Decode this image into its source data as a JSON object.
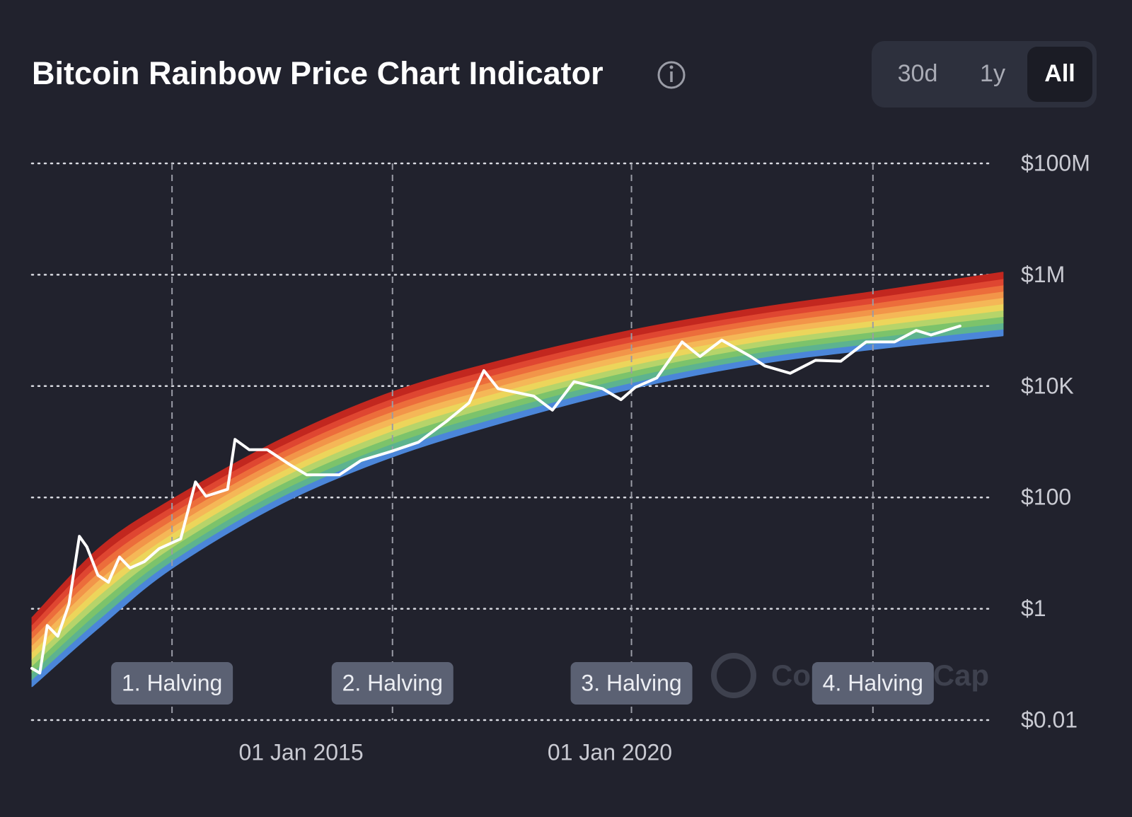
{
  "chart_data": {
    "type": "line",
    "title": "Bitcoin Rainbow Price Chart Indicator",
    "buttons": [
      "30d",
      "1y",
      "All"
    ],
    "active_button": 2,
    "watermark": "CoinMarketCap",
    "log_scale": true,
    "grid": true,
    "color": "#ffffff",
    "xlim": [
      2010.64,
      2026.37
    ],
    "xticks": [
      {
        "value": 2015,
        "label": "01 Jan 2015"
      },
      {
        "value": 2020,
        "label": "01 Jan 2020"
      }
    ],
    "ylim": [
      0.01,
      100000000
    ],
    "yticks": [
      {
        "value": 0.01,
        "label": "$0.01"
      },
      {
        "value": 1,
        "label": "$1"
      },
      {
        "value": 100,
        "label": "$100"
      },
      {
        "value": 10000,
        "label": "$10K"
      },
      {
        "value": 1000000,
        "label": "$1M"
      },
      {
        "value": 100000000,
        "label": "$100M"
      }
    ],
    "x": [
      2010.64,
      2010.77,
      2010.89,
      2011.06,
      2011.24,
      2011.41,
      2011.53,
      2011.71,
      2011.88,
      2012.06,
      2012.23,
      2012.46,
      2012.7,
      2013.05,
      2013.29,
      2013.46,
      2013.81,
      2013.93,
      2014.16,
      2014.45,
      2014.8,
      2015.09,
      2015.62,
      2015.97,
      2016.44,
      2016.9,
      2017.37,
      2017.72,
      2017.96,
      2018.19,
      2018.77,
      2019.07,
      2019.42,
      2019.88,
      2020.18,
      2020.41,
      2020.76,
      2021.17,
      2021.46,
      2021.81,
      2022.28,
      2022.51,
      2022.92,
      2023.33,
      2023.74,
      2024.15,
      2024.61,
      2024.96,
      2025.2,
      2025.67
    ],
    "values": [
      0.085,
      0.07,
      0.5,
      0.32,
      1.2,
      20,
      13,
      4,
      3,
      8.5,
      5.4,
      7,
      12,
      18,
      190,
      105,
      140,
      1100,
      720,
      720,
      400,
      255,
      255,
      460,
      660,
      980,
      2400,
      5000,
      19000,
      9000,
      6600,
      3700,
      12000,
      9000,
      5700,
      9500,
      14000,
      62000,
      34000,
      67000,
      34000,
      23000,
      17000,
      29000,
      28000,
      62000,
      62000,
      100000,
      83000,
      120000
    ],
    "rainbow": {
      "x": [
        2010.64,
        2011.76,
        2012.91,
        2014.68,
        2016.48,
        2018.31,
        2020.35,
        2022.39,
        2024.26,
        2026.37
      ],
      "lower": [
        0.04,
        0.5,
        5.4,
        78,
        540,
        2300,
        9000,
        25000,
        46000,
        81000
      ],
      "upper": [
        0.68,
        13,
        91,
        1100,
        7800,
        30000,
        100000,
        250000,
        490000,
        1100000
      ],
      "colors": [
        "#4b86d9",
        "#5db38f",
        "#7cc36b",
        "#b6d46a",
        "#ecd55b",
        "#f5b757",
        "#f29549",
        "#ec6d3b",
        "#df4631",
        "#c2271f"
      ]
    },
    "halvings": [
      {
        "label": "1. Halving",
        "x": 2012.91
      },
      {
        "label": "2. Halving",
        "x": 2016.48
      },
      {
        "label": "3. Halving",
        "x": 2020.35
      },
      {
        "label": "4. Halving",
        "x": 2024.26
      }
    ]
  }
}
